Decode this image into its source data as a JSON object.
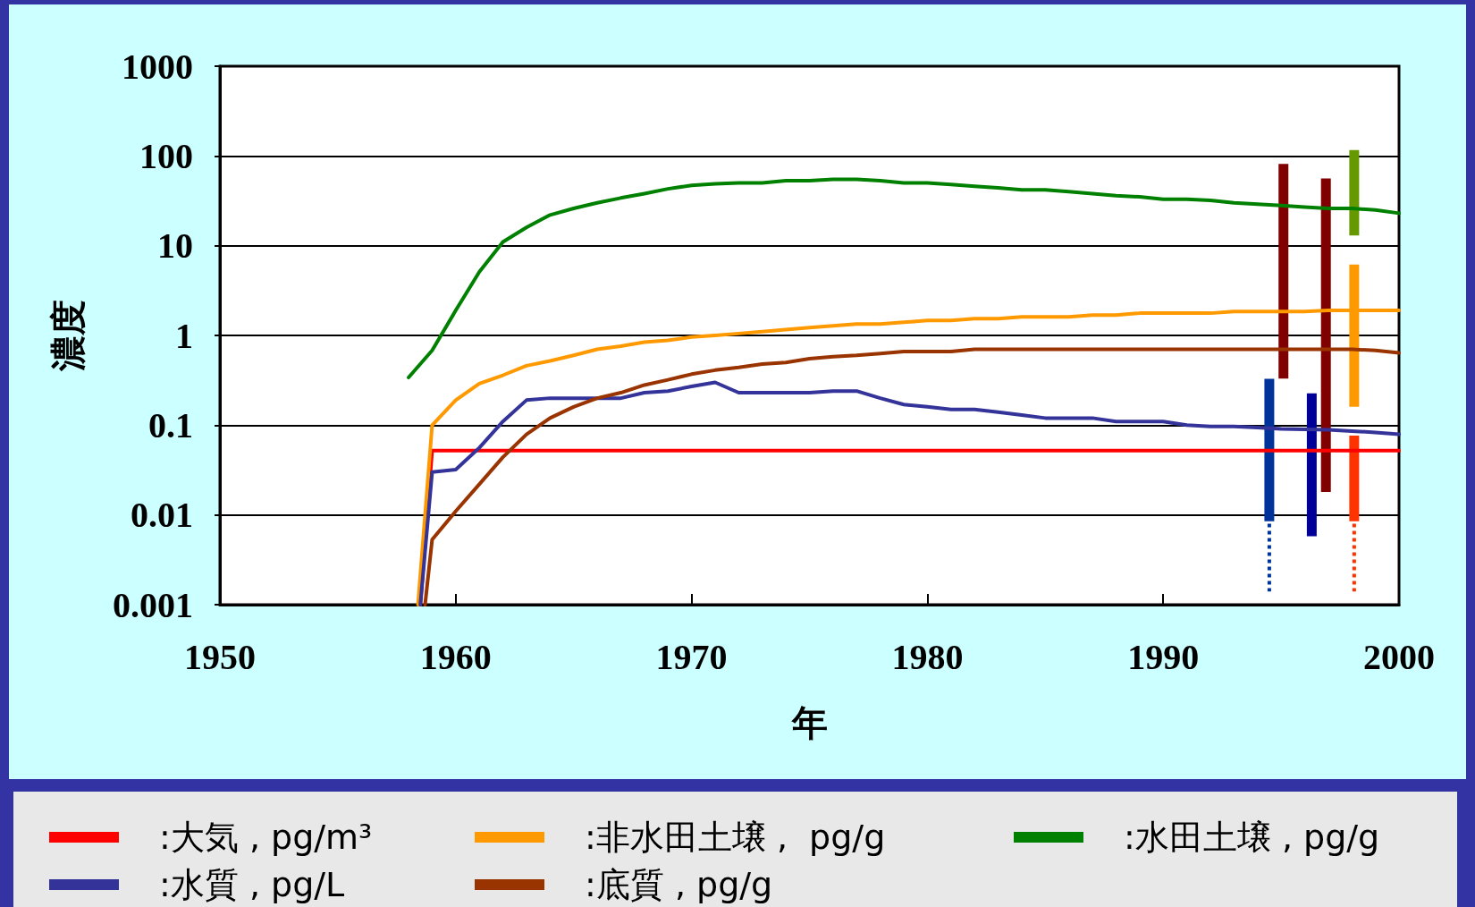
{
  "chart_data": {
    "type": "line",
    "xlabel": "年",
    "ylabel": "濃度",
    "xlim": [
      1950,
      2000
    ],
    "xticks": [
      1950,
      1960,
      1970,
      1980,
      1990,
      2000
    ],
    "ylim": [
      0.001,
      1000
    ],
    "yticks": [
      0.001,
      0.01,
      0.1,
      1,
      10,
      100,
      1000
    ],
    "log": "y",
    "grid": "y",
    "legend": "bottom",
    "line_style": "solid",
    "series": [
      {
        "name": ":大気 , pg/m³",
        "color": "#ff0000",
        "x": [
          1958.5,
          1959,
          2000
        ],
        "values": [
          0.001,
          0.052,
          0.052
        ]
      },
      {
        "name": ":非水田土壌 ,  pg/g",
        "color": "#ff9900",
        "x": [
          1958.4,
          1959,
          1960,
          1961,
          1962,
          1963,
          1964,
          1965,
          1966,
          1967,
          1968,
          1969,
          1970,
          1971,
          1972,
          1973,
          1974,
          1975,
          1976,
          1977,
          1978,
          1979,
          1980,
          1981,
          1982,
          1983,
          1984,
          1985,
          1986,
          1987,
          1988,
          1989,
          1990,
          1991,
          1992,
          1993,
          1994,
          1995,
          1996,
          1997,
          1998,
          1999,
          2000
        ],
        "values": [
          0.001,
          0.1,
          0.19,
          0.29,
          0.36,
          0.46,
          0.52,
          0.6,
          0.7,
          0.76,
          0.84,
          0.88,
          0.96,
          1,
          1.05,
          1.1,
          1.16,
          1.22,
          1.28,
          1.34,
          1.34,
          1.4,
          1.47,
          1.47,
          1.54,
          1.54,
          1.61,
          1.61,
          1.61,
          1.69,
          1.69,
          1.77,
          1.77,
          1.77,
          1.77,
          1.85,
          1.85,
          1.85,
          1.85,
          1.9,
          1.9,
          1.9,
          1.9
        ]
      },
      {
        "name": ":水田土壌 , pg/g",
        "color": "#008000",
        "x": [
          1958,
          1959,
          1960,
          1961,
          1962,
          1963,
          1964,
          1965,
          1966,
          1967,
          1968,
          1969,
          1970,
          1971,
          1972,
          1973,
          1974,
          1975,
          1976,
          1977,
          1978,
          1979,
          1980,
          1981,
          1982,
          1983,
          1984,
          1985,
          1986,
          1987,
          1988,
          1989,
          1990,
          1991,
          1992,
          1993,
          1994,
          1995,
          1996,
          1997,
          1998,
          1999,
          2000
        ],
        "values": [
          0.34,
          0.68,
          1.9,
          5.1,
          11,
          16,
          22,
          26,
          30,
          34,
          38,
          43,
          47,
          49,
          50,
          50,
          53,
          53,
          55,
          55,
          53,
          50,
          50,
          48,
          46,
          44,
          42,
          42,
          40,
          38,
          36,
          35,
          33,
          33,
          32,
          30,
          29,
          28,
          27,
          26,
          26,
          25,
          23
        ]
      },
      {
        "name": ":水質 , pg/L",
        "color": "#333399",
        "x": [
          1958.5,
          1959,
          1960,
          1961,
          1962,
          1963,
          1964,
          1965,
          1966,
          1967,
          1968,
          1969,
          1970,
          1971,
          1972,
          1973,
          1974,
          1975,
          1976,
          1977,
          1978,
          1979,
          1980,
          1981,
          1982,
          1983,
          1984,
          1985,
          1986,
          1987,
          1988,
          1989,
          1990,
          1991,
          1992,
          1993,
          1994,
          1995,
          1996,
          1997,
          1998,
          1999,
          2000
        ],
        "values": [
          0.001,
          0.03,
          0.032,
          0.056,
          0.11,
          0.19,
          0.2,
          0.2,
          0.2,
          0.2,
          0.23,
          0.24,
          0.27,
          0.3,
          0.23,
          0.23,
          0.23,
          0.23,
          0.24,
          0.24,
          0.2,
          0.17,
          0.16,
          0.15,
          0.15,
          0.14,
          0.13,
          0.12,
          0.12,
          0.12,
          0.11,
          0.11,
          0.11,
          0.1,
          0.097,
          0.097,
          0.094,
          0.091,
          0.09,
          0.089,
          0.086,
          0.083,
          0.079
        ]
      },
      {
        "name": ":底質 , pg/g",
        "color": "#993300",
        "x": [
          1958.7,
          1959,
          1960,
          1961,
          1962,
          1963,
          1964,
          1965,
          1966,
          1967,
          1968,
          1969,
          1970,
          1971,
          1972,
          1973,
          1974,
          1975,
          1976,
          1977,
          1978,
          1979,
          1980,
          1981,
          1982,
          1983,
          1984,
          1985,
          1986,
          1987,
          1988,
          1989,
          1990,
          1991,
          1992,
          1993,
          1994,
          1995,
          1996,
          1997,
          1998,
          1999,
          2000
        ],
        "values": [
          0.001,
          0.0053,
          0.011,
          0.022,
          0.044,
          0.079,
          0.12,
          0.16,
          0.2,
          0.23,
          0.28,
          0.32,
          0.37,
          0.41,
          0.44,
          0.48,
          0.5,
          0.55,
          0.58,
          0.6,
          0.63,
          0.66,
          0.66,
          0.66,
          0.7,
          0.7,
          0.7,
          0.7,
          0.7,
          0.7,
          0.7,
          0.7,
          0.7,
          0.7,
          0.7,
          0.7,
          0.7,
          0.7,
          0.7,
          0.7,
          0.7,
          0.68,
          0.64
        ]
      },
      {
        "type": "bar",
        "x": [
          1994.5,
          1996.3
        ],
        "base": [
          0.0085,
          0.0058
        ],
        "values": [
          0.32,
          0.22
        ],
        "colors": [
          "#003399",
          "#000099"
        ]
      },
      {
        "type": "bar",
        "color": "#800000",
        "x": [
          1995.1,
          1996.9
        ],
        "base": [
          0.33,
          0.018
        ],
        "values": [
          81,
          56
        ]
      },
      {
        "type": "bar",
        "color": "#669900",
        "x": [
          1998.1
        ],
        "base": [
          13
        ],
        "values": [
          103
        ]
      },
      {
        "type": "bar",
        "color": "#ff9900",
        "x": [
          1998.1
        ],
        "base": [
          0.16
        ],
        "values": [
          6
        ]
      },
      {
        "type": "bar",
        "color": "#ff3300",
        "x": [
          1998.1
        ],
        "base": [
          0.0085
        ],
        "values": [
          0.068
        ]
      },
      {
        "type": "line",
        "color": "#003399",
        "line_style": "dotted",
        "x": [
          1994.5,
          1994.5
        ],
        "values": [
          0.008,
          0.0014
        ]
      },
      {
        "type": "line",
        "color": "#ff3300",
        "line_style": "dotted",
        "x": [
          1998.1,
          1998.1
        ],
        "values": [
          0.008,
          0.0014
        ]
      }
    ]
  }
}
